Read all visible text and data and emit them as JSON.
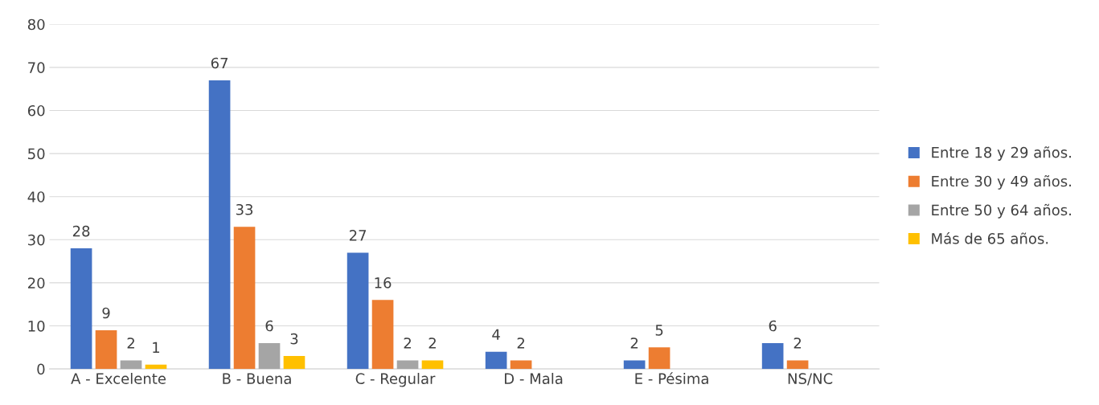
{
  "chart_data": {
    "type": "bar",
    "categories": [
      "A - Excelente",
      "B - Buena",
      "C - Regular",
      "D - Mala",
      "E - Pésima",
      "NS/NC"
    ],
    "series": [
      {
        "name": "Entre 18 y 29 años.",
        "color": "#4472c4",
        "values": [
          28,
          67,
          27,
          4,
          2,
          6
        ]
      },
      {
        "name": "Entre 30 y 49 años.",
        "color": "#ed7d31",
        "values": [
          9,
          33,
          16,
          2,
          5,
          2
        ]
      },
      {
        "name": "Entre 50 y 64 años.",
        "color": "#a5a5a5",
        "values": [
          2,
          6,
          2,
          null,
          null,
          null
        ]
      },
      {
        "name": "Más de 65 años.",
        "color": "#ffc000",
        "values": [
          1,
          3,
          2,
          null,
          null,
          null
        ]
      }
    ],
    "ylim": [
      0,
      80
    ],
    "yticks": [
      0,
      10,
      20,
      30,
      40,
      50,
      60,
      70,
      80
    ],
    "grid": "y",
    "legend": "right",
    "data_labels": true
  }
}
